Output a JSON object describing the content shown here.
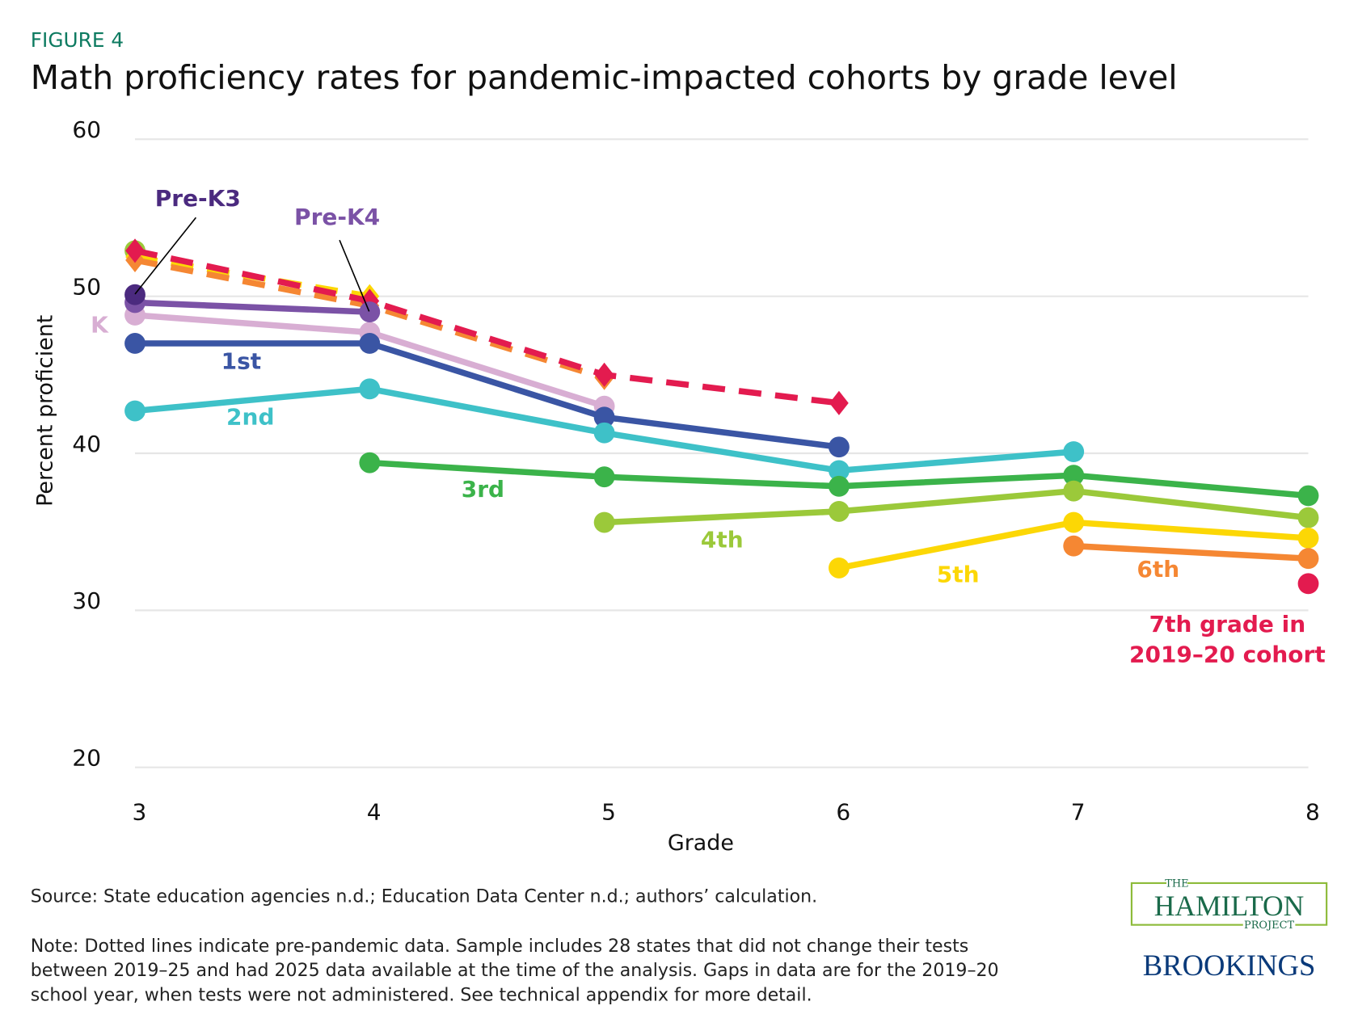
{
  "figure_label": "FIGURE 4",
  "title": "Math proficiency rates for pandemic-impacted cohorts by grade level",
  "source": "Source: State education agencies n.d.; Education Data Center n.d.; authors’ calculation.",
  "note_lines": [
    "Note: Dotted lines indicate pre-pandemic data. Sample includes 28 states that did not change their tests",
    "between 2019–25 and had 2025 data available at the time of the analysis. Gaps in data are for the 2019–20",
    "school year, when tests were not administered. See technical appendix for more detail."
  ],
  "logos": {
    "hamilton_the": "THE",
    "hamilton": "HAMILTON",
    "hamilton_project": "PROJECT",
    "brookings": "BROOKINGS"
  },
  "chart_data": {
    "type": "line",
    "xlabel": "Grade",
    "ylabel": "Percent proficient",
    "xlim": [
      3,
      8
    ],
    "ylim": [
      20,
      60
    ],
    "x_ticks": [
      "3",
      "4",
      "5",
      "6",
      "7",
      "8"
    ],
    "y_ticks": [
      "20",
      "30",
      "40",
      "50",
      "60"
    ],
    "grid": "horizontal",
    "series": [
      {
        "name": "Pre-K3",
        "color": "#4b2a7f",
        "style": "solid",
        "x": [
          3
        ],
        "y": [
          50.1
        ]
      },
      {
        "name": "Pre-K4",
        "color": "#7b52a6",
        "style": "solid",
        "x": [
          3,
          4
        ],
        "y": [
          49.6,
          49.0
        ]
      },
      {
        "name": "K",
        "color": "#d8aed3",
        "style": "solid",
        "x": [
          3,
          4,
          5
        ],
        "y": [
          48.8,
          47.7,
          43.0
        ]
      },
      {
        "name": "1st",
        "color": "#3a55a4",
        "style": "solid",
        "x": [
          3,
          4,
          5,
          6
        ],
        "y": [
          47.0,
          47.0,
          42.3,
          40.4
        ]
      },
      {
        "name": "2nd",
        "color": "#3ec1c8",
        "style": "solid",
        "x": [
          3,
          4,
          5,
          6,
          7
        ],
        "y": [
          42.7,
          44.1,
          41.3,
          38.9,
          40.1
        ]
      },
      {
        "name": "3rd",
        "color": "#3bb34a",
        "style": "solid",
        "x": [
          4,
          5,
          6,
          7,
          8
        ],
        "y": [
          39.4,
          38.5,
          37.9,
          38.6,
          37.3
        ]
      },
      {
        "name": "4th",
        "color": "#9bc93a",
        "style": "solid",
        "x": [
          5,
          6,
          7,
          8
        ],
        "y": [
          35.6,
          36.3,
          37.6,
          35.9
        ]
      },
      {
        "name": "5th",
        "color": "#fcd705",
        "style": "solid",
        "x": [
          6,
          7,
          8
        ],
        "y": [
          32.7,
          35.6,
          34.6
        ]
      },
      {
        "name": "6th",
        "color": "#f58733",
        "style": "solid",
        "x": [
          7,
          8
        ],
        "y": [
          34.1,
          33.3
        ]
      },
      {
        "name": "7th grade in 2019-20 cohort",
        "color": "#e31b4f",
        "style": "solid",
        "x": [
          8
        ],
        "y": [
          31.7
        ]
      },
      {
        "color": "#9bc93a",
        "style": "pre-pandemic",
        "marker": "circle",
        "x": [
          3
        ],
        "y": [
          52.9
        ]
      },
      {
        "color": "#fcd705",
        "style": "pre-pandemic",
        "marker": "diamond",
        "x": [
          3,
          4
        ],
        "y": [
          52.5,
          50.0
        ]
      },
      {
        "color": "#f58733",
        "style": "pre-pandemic",
        "marker": "diamond",
        "x": [
          3,
          4,
          5
        ],
        "y": [
          52.3,
          49.4,
          44.8
        ]
      },
      {
        "color": "#e31b4f",
        "style": "pre-pandemic",
        "marker": "diamond",
        "x": [
          3,
          4,
          5,
          6
        ],
        "y": [
          52.9,
          49.7,
          45.0,
          43.2
        ]
      }
    ],
    "labels": {
      "prek3": "Pre-K3",
      "prek4": "Pre-K4",
      "k": "K",
      "first": "1st",
      "second": "2nd",
      "third": "3rd",
      "fourth": "4th",
      "fifth": "5th",
      "sixth": "6th",
      "seventh_1": "7th grade in",
      "seventh_2": "2019–20 cohort"
    }
  }
}
